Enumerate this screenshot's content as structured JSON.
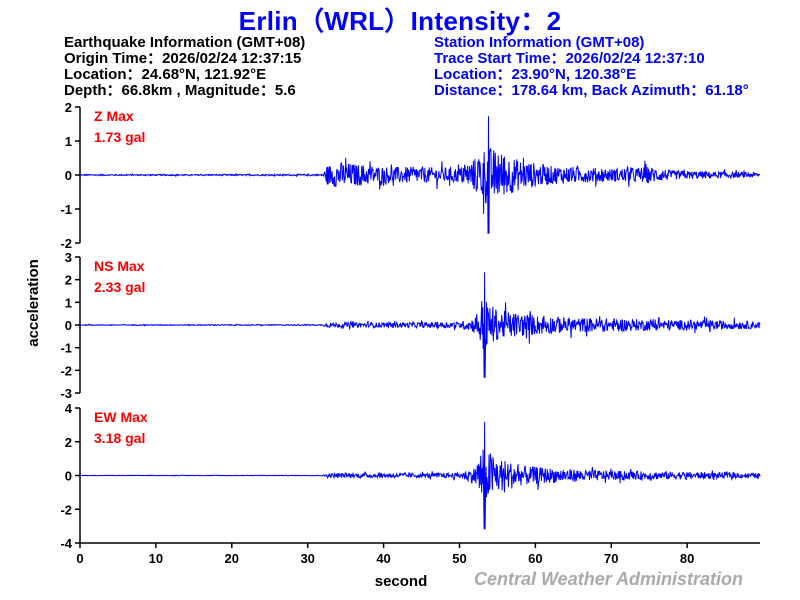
{
  "header": {
    "title": "Erlin（WRL）Intensity：2"
  },
  "earthquake_info": {
    "heading": "Earthquake Information  (GMT+08)",
    "origin_time": "Origin Time：2026/02/24 12:37:15",
    "location": "Location：24.68°N, 121.92°E",
    "depth_magnitude": "Depth：66.8km , Magnitude：5.6"
  },
  "station_info": {
    "heading": "Station Information  (GMT+08)",
    "trace_start": "Trace Start Time：2026/02/24 12:37:10",
    "location": "Location：23.90°N, 120.38°E",
    "distance": "Distance：178.64 km, Back Azimuth：61.18°"
  },
  "footer": {
    "credit": "Central Weather Administration"
  },
  "colors": {
    "title": "#0000ff",
    "trace": "#0000ff",
    "max_label": "#ff0000",
    "credit": "#aaaaaa"
  },
  "chart_data": {
    "type": "line",
    "title": "Erlin（WRL）Intensity：2",
    "xlabel": "second",
    "ylabel": "acceleration",
    "xlim": [
      0,
      89.6
    ],
    "x_ticks": [
      0,
      10,
      20,
      30,
      40,
      50,
      60,
      70,
      80
    ],
    "grid": false,
    "panels": [
      {
        "component": "Z",
        "label": "Z Max",
        "max_text": "1.73 gal",
        "max_gal": 1.73,
        "ylim": [
          -2,
          2
        ],
        "y_ticks": [
          2,
          1,
          0,
          -1,
          -2
        ],
        "p_arrival_s": 32.5,
        "s_arrival_s": 53,
        "envelope": [
          [
            0,
            0.03
          ],
          [
            32,
            0.04
          ],
          [
            32.5,
            0.5
          ],
          [
            34,
            0.7
          ],
          [
            40,
            0.45
          ],
          [
            50,
            0.4
          ],
          [
            52,
            0.9
          ],
          [
            53.5,
            1.6
          ],
          [
            55,
            1.3
          ],
          [
            58,
            0.8
          ],
          [
            62,
            0.5
          ],
          [
            70,
            0.35
          ],
          [
            75,
            0.45
          ],
          [
            78,
            0.25
          ],
          [
            89.6,
            0.12
          ]
        ]
      },
      {
        "component": "NS",
        "label": "NS Max",
        "max_text": "2.33 gal",
        "max_gal": 2.33,
        "ylim": [
          -3,
          3
        ],
        "y_ticks": [
          3,
          2,
          1,
          0,
          -1,
          -2,
          -3
        ],
        "p_arrival_s": 32.5,
        "s_arrival_s": 52.5,
        "envelope": [
          [
            0,
            0.03
          ],
          [
            32,
            0.04
          ],
          [
            32.5,
            0.2
          ],
          [
            40,
            0.2
          ],
          [
            50,
            0.25
          ],
          [
            52,
            0.6
          ],
          [
            53,
            2.3
          ],
          [
            55,
            1.2
          ],
          [
            60,
            0.8
          ],
          [
            65,
            0.6
          ],
          [
            75,
            0.45
          ],
          [
            85,
            0.35
          ],
          [
            89.6,
            0.3
          ]
        ]
      },
      {
        "component": "EW",
        "label": "EW Max",
        "max_text": "3.18 gal",
        "max_gal": 3.18,
        "ylim": [
          -4,
          4
        ],
        "y_ticks": [
          4,
          2,
          0,
          -2,
          -4
        ],
        "p_arrival_s": 32.5,
        "s_arrival_s": 52.5,
        "envelope": [
          [
            0,
            0.02
          ],
          [
            32,
            0.03
          ],
          [
            32.5,
            0.25
          ],
          [
            45,
            0.25
          ],
          [
            50,
            0.3
          ],
          [
            52,
            0.9
          ],
          [
            53,
            3.2
          ],
          [
            55,
            2.0
          ],
          [
            58,
            1.1
          ],
          [
            62,
            0.8
          ],
          [
            70,
            0.5
          ],
          [
            80,
            0.4
          ],
          [
            89.6,
            0.25
          ]
        ]
      }
    ]
  }
}
